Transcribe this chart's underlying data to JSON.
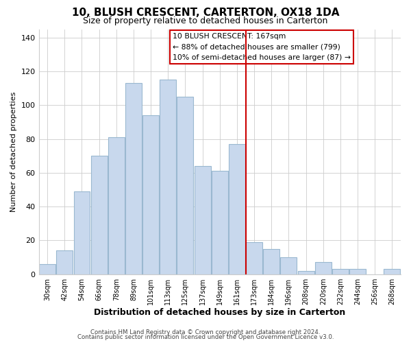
{
  "title": "10, BLUSH CRESCENT, CARTERTON, OX18 1DA",
  "subtitle": "Size of property relative to detached houses in Carterton",
  "xlabel": "Distribution of detached houses by size in Carterton",
  "ylabel": "Number of detached properties",
  "bar_color": "#c8d8ed",
  "bar_edge_color": "#9ab8d0",
  "categories": [
    "30sqm",
    "42sqm",
    "54sqm",
    "66sqm",
    "78sqm",
    "89sqm",
    "101sqm",
    "113sqm",
    "125sqm",
    "137sqm",
    "149sqm",
    "161sqm",
    "173sqm",
    "184sqm",
    "196sqm",
    "208sqm",
    "220sqm",
    "232sqm",
    "244sqm",
    "256sqm",
    "268sqm"
  ],
  "values": [
    6,
    14,
    49,
    70,
    81,
    113,
    94,
    115,
    105,
    64,
    61,
    77,
    19,
    15,
    10,
    2,
    7,
    3,
    3,
    0,
    3
  ],
  "ylim": [
    0,
    145
  ],
  "yticks": [
    0,
    20,
    40,
    60,
    80,
    100,
    120,
    140
  ],
  "property_line_color": "#cc0000",
  "property_line_index": 11.5,
  "annotation_text_line1": "10 BLUSH CRESCENT: 167sqm",
  "annotation_text_line2": "← 88% of detached houses are smaller (799)",
  "annotation_text_line3": "10% of semi-detached houses are larger (87) →",
  "footer1": "Contains HM Land Registry data © Crown copyright and database right 2024.",
  "footer2": "Contains public sector information licensed under the Open Government Licence v3.0.",
  "background_color": "#ffffff",
  "grid_color": "#cccccc"
}
